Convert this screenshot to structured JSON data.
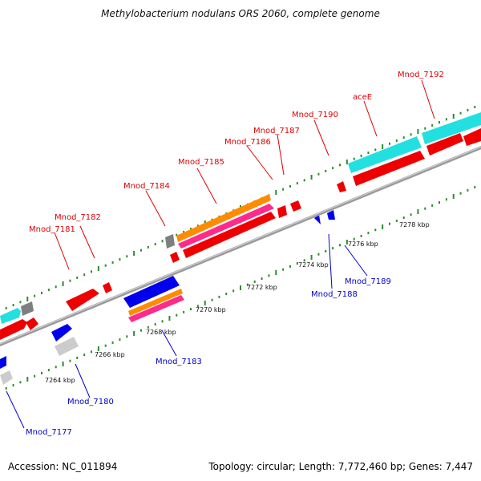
{
  "title": "Methylobacterium nodulans ORS 2060, complete genome",
  "footer": {
    "accession": "Accession: NC_011894",
    "summary": "Topology: circular; Length: 7,772,460 bp; Genes: 7,447"
  },
  "colors": {
    "forward_label": "#e00000",
    "reverse_label": "#0000cc",
    "backbone": "#808080",
    "tick": "#2e8b2e",
    "cds_red": "#ee0000",
    "cds_blue": "#0000ee",
    "cyan": "#22e0e0",
    "orange": "#ff8c00",
    "pink": "#ff2a8c",
    "grey": "#7f7f7f",
    "light_grey": "#cccccc"
  },
  "scale_labels": [
    "7264 kbp",
    "7266 kbp",
    "7268 kbp",
    "7270 kbp",
    "7272 kbp",
    "7274 kbp",
    "7276 kbp",
    "7278 kbp"
  ],
  "forward_labels": [
    "Mnod_7181",
    "Mnod_7182",
    "Mnod_7184",
    "Mnod_7185",
    "Mnod_7186",
    "Mnod_7187",
    "Mnod_7190",
    "aceE",
    "Mnod_7192"
  ],
  "reverse_labels": [
    "Mnod_7177",
    "Mnod_7180",
    "Mnod_7183",
    "Mnod_7188",
    "Mnod_7189"
  ]
}
